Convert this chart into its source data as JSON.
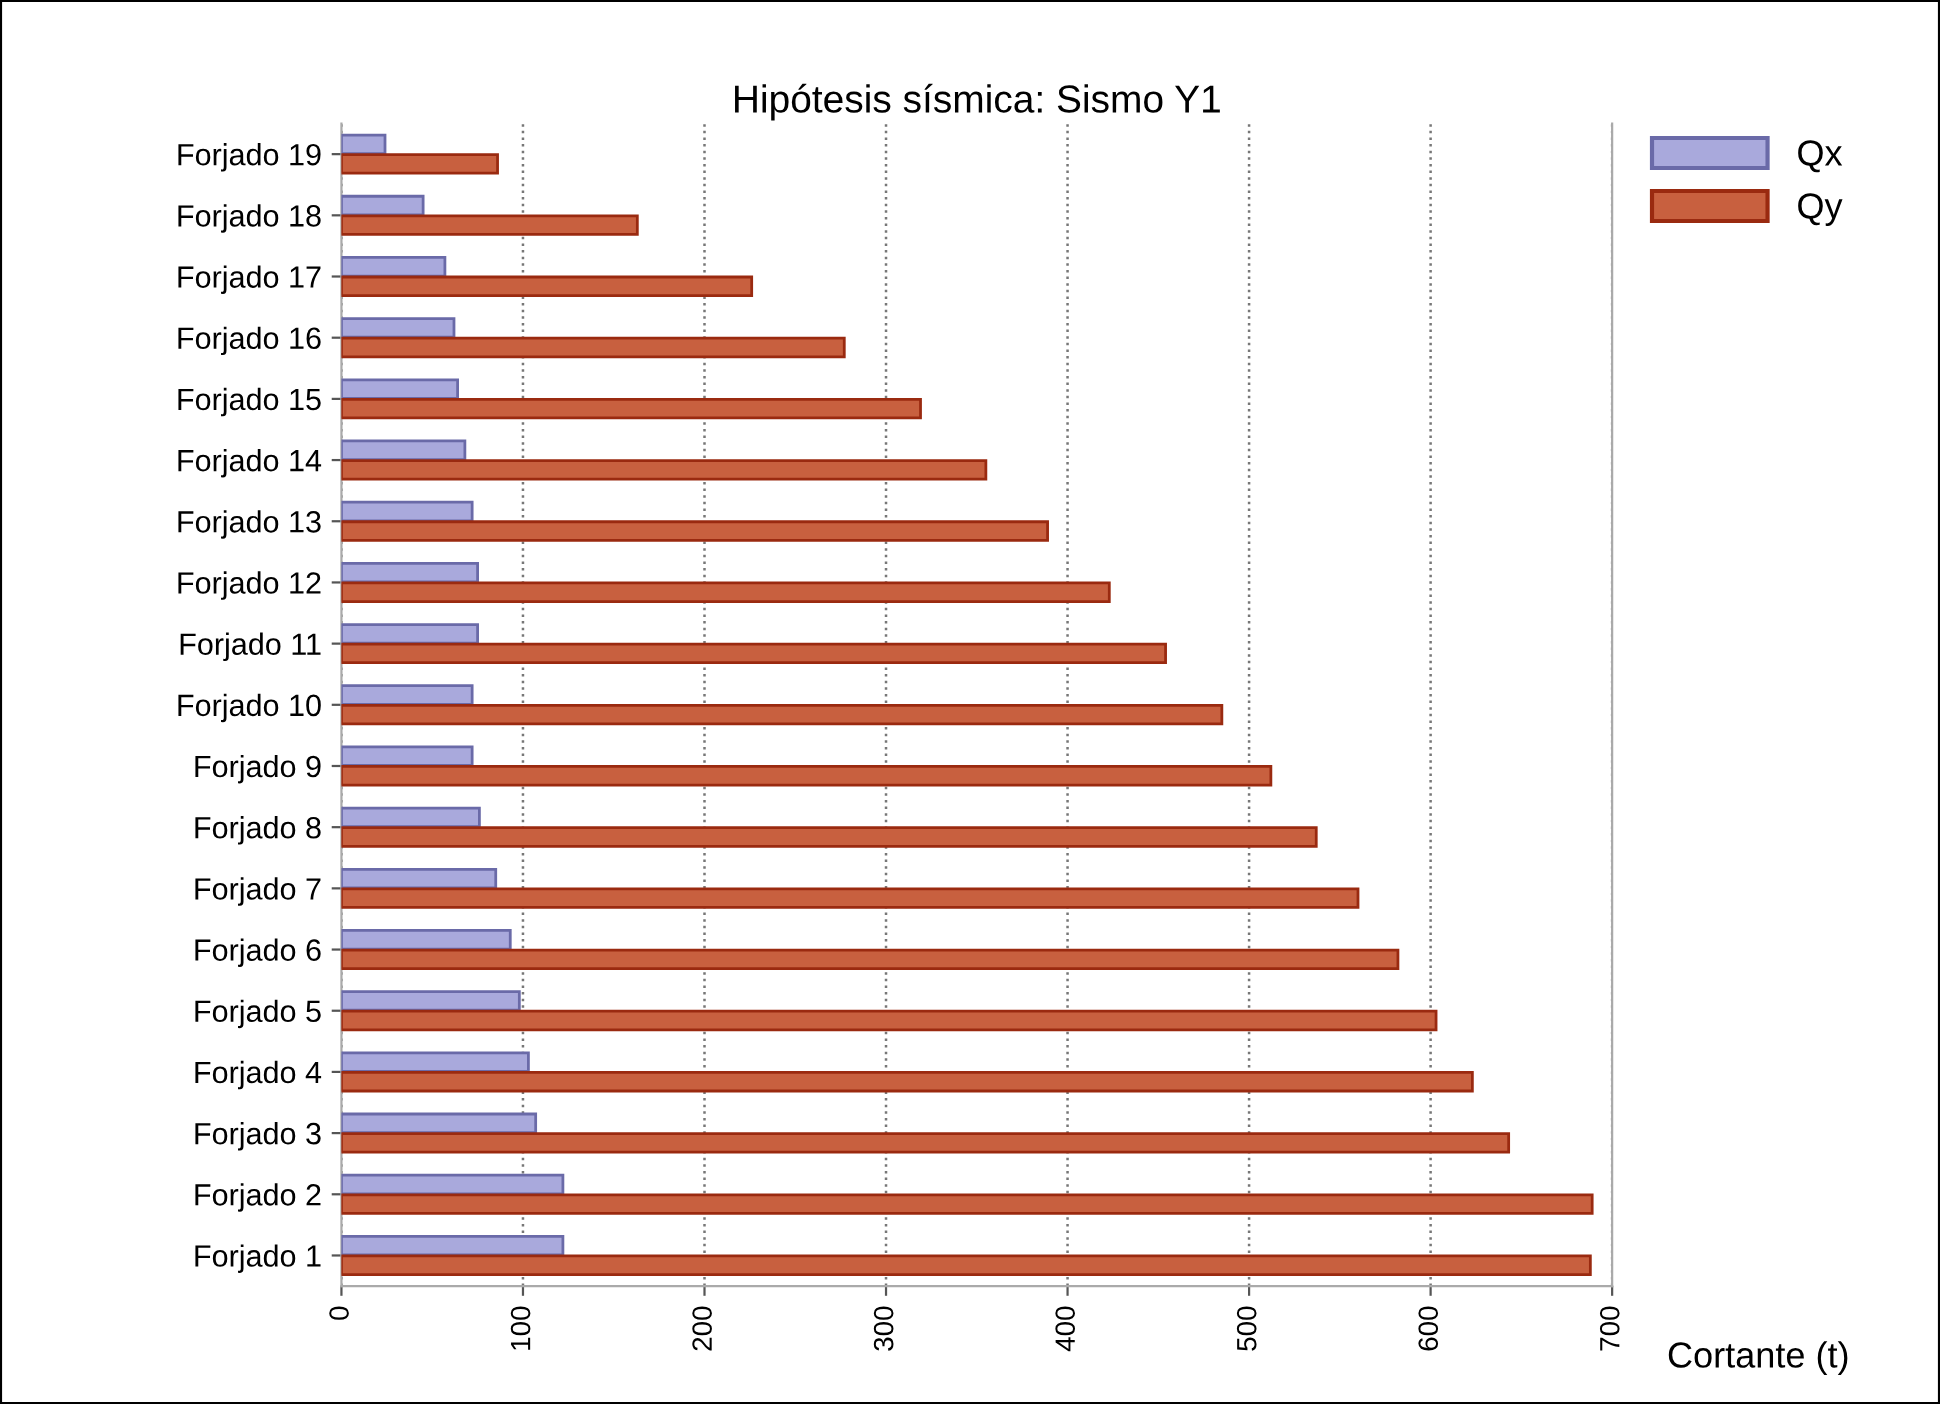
{
  "chart_data": {
    "type": "bar",
    "orientation": "horizontal",
    "title": "Hipótesis sísmica: Sismo Y1",
    "xlabel": "Cortante (t)",
    "categories": [
      "Forjado 19",
      "Forjado 18",
      "Forjado 17",
      "Forjado 16",
      "Forjado 15",
      "Forjado 14",
      "Forjado 13",
      "Forjado 12",
      "Forjado 11",
      "Forjado 10",
      "Forjado 9",
      "Forjado 8",
      "Forjado 7",
      "Forjado 6",
      "Forjado 5",
      "Forjado 4",
      "Forjado 3",
      "Forjado 2",
      "Forjado 1"
    ],
    "series": [
      {
        "name": "Qx",
        "color": "#a9a9dc",
        "values": [
          24,
          45,
          57,
          62,
          64,
          68,
          72,
          75,
          75,
          72,
          72,
          76,
          85,
          93,
          98,
          103,
          107,
          122,
          122
        ]
      },
      {
        "name": "Qy",
        "color": "#c8603f",
        "values": [
          86,
          163,
          226,
          277,
          319,
          355,
          389,
          423,
          454,
          485,
          512,
          537,
          560,
          582,
          603,
          623,
          643,
          689,
          688
        ]
      }
    ],
    "xlim": [
      0,
      700
    ],
    "xticks": [
      0,
      100,
      200,
      300,
      400,
      500,
      600,
      700
    ],
    "grid": "x",
    "legend": "top right"
  }
}
